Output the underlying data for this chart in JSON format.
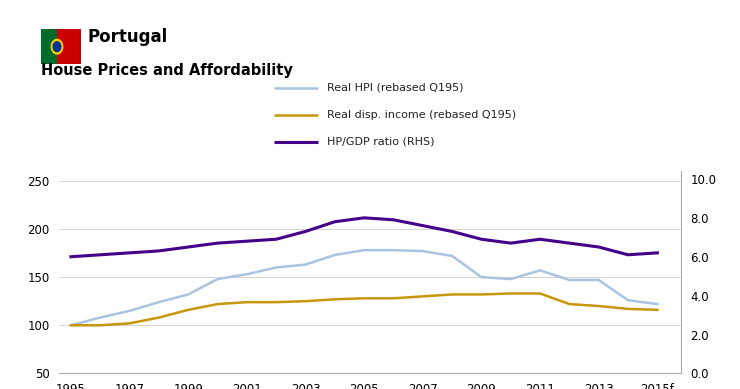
{
  "title": "House Prices and Affordability",
  "country": "Portugal",
  "x_labels": [
    "1995",
    "1997",
    "1999",
    "2001",
    "2003",
    "2005",
    "2007",
    "2009",
    "2011",
    "2013",
    "2015f"
  ],
  "x_values": [
    1995,
    1997,
    1999,
    2001,
    2003,
    2005,
    2007,
    2009,
    2011,
    2013,
    2015
  ],
  "real_hpi_x": [
    1995,
    1996,
    1997,
    1998,
    1999,
    2000,
    2001,
    2002,
    2003,
    2004,
    2005,
    2006,
    2007,
    2008,
    2009,
    2010,
    2011,
    2012,
    2013,
    2014,
    2015
  ],
  "real_hpi_y": [
    100,
    108,
    115,
    124,
    132,
    148,
    153,
    160,
    163,
    173,
    178,
    178,
    177,
    172,
    150,
    148,
    157,
    147,
    147,
    126,
    122
  ],
  "real_income_x": [
    1995,
    1996,
    1997,
    1998,
    1999,
    2000,
    2001,
    2002,
    2003,
    2004,
    2005,
    2006,
    2007,
    2008,
    2009,
    2010,
    2011,
    2012,
    2013,
    2014,
    2015
  ],
  "real_income_y": [
    100,
    100,
    102,
    108,
    116,
    122,
    124,
    124,
    125,
    127,
    128,
    128,
    130,
    132,
    132,
    133,
    133,
    122,
    120,
    117,
    116
  ],
  "hp_gdp_x": [
    1995,
    1996,
    1997,
    1998,
    1999,
    2000,
    2001,
    2002,
    2003,
    2004,
    2005,
    2006,
    2007,
    2008,
    2009,
    2010,
    2011,
    2012,
    2013,
    2014,
    2015
  ],
  "hp_gdp_y": [
    6.0,
    6.1,
    6.2,
    6.3,
    6.5,
    6.7,
    6.8,
    6.9,
    7.3,
    7.8,
    8.0,
    7.9,
    7.6,
    7.3,
    6.9,
    6.7,
    6.9,
    6.7,
    6.5,
    6.1,
    6.2
  ],
  "color_hpi": "#a8c4e0",
  "color_income": "#c8960c",
  "color_hpgdp": "#440088",
  "ylim_left": [
    50,
    260
  ],
  "ylim_right": [
    0.0,
    10.4
  ],
  "yticks_left": [
    50,
    100,
    150,
    200,
    250
  ],
  "yticks_right": [
    0.0,
    2.0,
    4.0,
    6.0,
    8.0,
    10.0
  ],
  "background_color": "#ffffff",
  "legend_labels": [
    "Real HPI (rebased Q195)",
    "Real disp. income (rebased Q195)",
    "HP/GDP ratio (RHS)"
  ],
  "flag_green": "#006b2b",
  "flag_red": "#cc0000"
}
